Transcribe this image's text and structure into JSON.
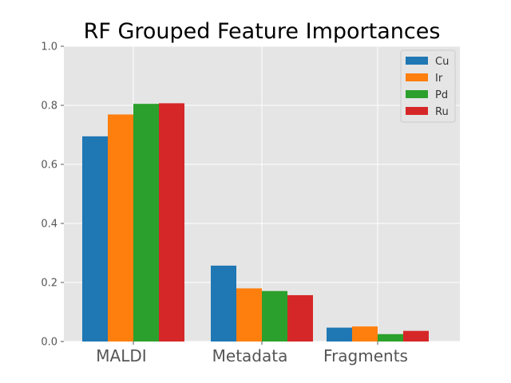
{
  "chart_data": {
    "type": "bar",
    "title": "RF Grouped Feature Importances",
    "xlabel": "",
    "ylabel": "",
    "categories": [
      "MALDI",
      "Metadata",
      "Fragments"
    ],
    "series": [
      {
        "name": "Cu",
        "values": [
          0.695,
          0.257,
          0.047
        ]
      },
      {
        "name": "Ir",
        "values": [
          0.769,
          0.18,
          0.051
        ]
      },
      {
        "name": "Pd",
        "values": [
          0.805,
          0.171,
          0.025
        ]
      },
      {
        "name": "Ru",
        "values": [
          0.807,
          0.157,
          0.036
        ]
      }
    ],
    "ylim": [
      0,
      1.0
    ],
    "yticks": [
      "0.0",
      "0.2",
      "0.4",
      "0.6",
      "0.8",
      "1.0"
    ],
    "grid": true,
    "legend_position": "top-right",
    "colors": {
      "Cu": "#1f77b4",
      "Ir": "#ff7f0e",
      "Pd": "#2ca02c",
      "Ru": "#d62728",
      "plot_background": "#e5e5e5",
      "grid": "#ffffff"
    }
  }
}
